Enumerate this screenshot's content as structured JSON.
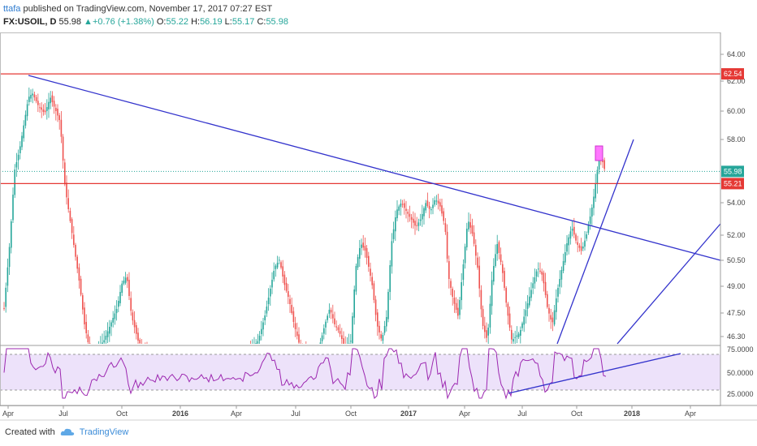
{
  "header": {
    "user": "ttafa",
    "published_text": "published on TradingView.com, November 17, 2017 07:27 EST",
    "symbol": "FX:USOIL, D",
    "last": "55.98",
    "change": "+0.76 (+1.38%)",
    "o_label": "O:",
    "o": "55.22",
    "h_label": "H:",
    "h": "56.19",
    "l_label": "L:",
    "l": "55.17",
    "c_label": "C:",
    "c": "55.98"
  },
  "footer": {
    "created_with": "Created with",
    "brand": "TradingView"
  },
  "chart_data": {
    "type": "candlestick",
    "x_ticks": [
      "Apr",
      "Jul",
      "Oct",
      "2016",
      "Apr",
      "Jul",
      "Oct",
      "2017",
      "Apr",
      "Jul",
      "Oct",
      "2018",
      "Apr"
    ],
    "y_ticks": [
      "64.00",
      "62.00",
      "60.00",
      "58.00",
      "54.00",
      "52.00",
      "50.50",
      "49.00",
      "47.50",
      "46.30"
    ],
    "price_labels": [
      {
        "value": "62.54",
        "color": "#e53935"
      },
      {
        "value": "55.98",
        "color": "#26a69a"
      },
      {
        "value": "55.21",
        "color": "#e53935"
      }
    ],
    "horizontal_levels": [
      62.54,
      55.21
    ],
    "last_price": 55.98,
    "up_color": "#26a69a",
    "down_color": "#ef5350",
    "trendline_color": "#3333cc",
    "rsi": {
      "y_ticks": [
        "75.0000",
        "50.0000",
        "25.0000"
      ],
      "upper": 70,
      "lower": 30,
      "band_color": "#ede2fa",
      "line_color": "#9c27b0"
    }
  }
}
